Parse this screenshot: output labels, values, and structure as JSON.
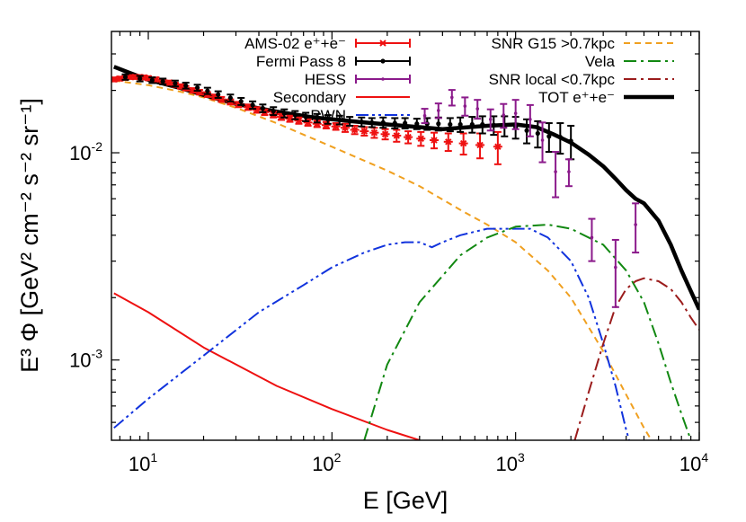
{
  "chart_data": {
    "type": "line",
    "xlabel": "E [GeV]",
    "ylabel": "E³ Φ [GeV² cm⁻² s⁻² sr⁻¹]",
    "xscale": "log",
    "yscale": "log",
    "xlim": [
      6.3,
      10000
    ],
    "ylim": [
      0.00041,
      0.0385
    ],
    "grid": false,
    "legend_position": "top, two columns",
    "x_ticks": [
      {
        "value": 10,
        "base": "10",
        "exp": "1"
      },
      {
        "value": 100,
        "base": "10",
        "exp": "2"
      },
      {
        "value": 1000,
        "base": "10",
        "exp": "3"
      },
      {
        "value": 10000,
        "base": "10",
        "exp": "4"
      }
    ],
    "y_ticks": [
      {
        "value": 0.001,
        "base": "10",
        "exp": "-3"
      },
      {
        "value": 0.01,
        "base": "10",
        "exp": "-2"
      }
    ],
    "legend_left": [
      {
        "key": "ams",
        "label": "AMS-02 e⁺+e⁻"
      },
      {
        "key": "fermi",
        "label": "Fermi Pass 8"
      },
      {
        "key": "hess",
        "label": "HESS"
      },
      {
        "key": "secondary",
        "label": "Secondary"
      },
      {
        "key": "pwn",
        "label": "PWN"
      }
    ],
    "legend_right": [
      {
        "key": "g15",
        "label": "SNR G15 >0.7kpc"
      },
      {
        "key": "vela",
        "label": "Vela"
      },
      {
        "key": "local",
        "label": "SNR local <0.7kpc"
      },
      {
        "key": "tot",
        "label": "TOT e⁺+e⁻"
      }
    ],
    "colors": {
      "ams": "#ee1111",
      "fermi": "#000000",
      "hess": "#8b1a8b",
      "secondary": "#ee1111",
      "pwn": "#1133dd",
      "g15": "#f0a020",
      "vela": "#118811",
      "local": "#9b1c1c",
      "tot": "#000000"
    },
    "series": [
      {
        "key": "tot",
        "x": [
          6.5,
          8,
          10,
          15,
          20,
          30,
          50,
          80,
          100,
          150,
          200,
          300,
          400,
          500,
          700,
          1000,
          1300,
          1600,
          2000,
          2500,
          3000,
          3500,
          4000,
          4500,
          5000,
          6000,
          7000,
          8000,
          10000
        ],
        "y": [
          0.026,
          0.0242,
          0.0225,
          0.0205,
          0.019,
          0.0172,
          0.0158,
          0.0148,
          0.0145,
          0.014,
          0.0137,
          0.0133,
          0.013,
          0.0132,
          0.0135,
          0.0137,
          0.0133,
          0.0123,
          0.0112,
          0.0098,
          0.0086,
          0.0075,
          0.0066,
          0.006,
          0.0057,
          0.0047,
          0.0036,
          0.0027,
          0.00175
        ]
      },
      {
        "key": "g15",
        "x": [
          6.5,
          10,
          15,
          20,
          30,
          50,
          100,
          200,
          300,
          500,
          700,
          1000,
          1500,
          2000,
          3000,
          4000,
          5000,
          6000
        ],
        "y": [
          0.0223,
          0.0212,
          0.0197,
          0.0185,
          0.0165,
          0.0139,
          0.0107,
          0.0082,
          0.0069,
          0.0053,
          0.0045,
          0.0037,
          0.0027,
          0.002,
          0.0011,
          0.00068,
          0.00047,
          0.00036
        ]
      },
      {
        "key": "secondary",
        "x": [
          6.5,
          10,
          20,
          50,
          100,
          200,
          300
        ],
        "y": [
          0.0021,
          0.0017,
          0.00115,
          0.00075,
          0.00058,
          0.00046,
          0.00041
        ]
      },
      {
        "key": "pwn",
        "x": [
          6.5,
          10,
          20,
          40,
          70,
          100,
          150,
          200,
          250,
          300,
          350,
          400,
          500,
          700,
          1000,
          1200,
          1500,
          2000,
          2500,
          3000,
          3500,
          4000,
          4500
        ],
        "y": [
          0.00047,
          0.00065,
          0.00105,
          0.0017,
          0.0023,
          0.0028,
          0.0033,
          0.0036,
          0.0037,
          0.0037,
          0.0035,
          0.0037,
          0.004,
          0.0043,
          0.0043,
          0.0043,
          0.0039,
          0.003,
          0.002,
          0.0012,
          0.00075,
          0.00046,
          0.00032
        ]
      },
      {
        "key": "vela",
        "x": [
          150,
          200,
          300,
          500,
          700,
          1000,
          1500,
          2000,
          3000,
          4000,
          5000,
          6000,
          7000,
          8000,
          9000
        ],
        "y": [
          0.00041,
          0.00095,
          0.0019,
          0.0032,
          0.0039,
          0.0044,
          0.0045,
          0.0043,
          0.0036,
          0.0027,
          0.0019,
          0.0012,
          0.00078,
          0.00055,
          0.00041
        ]
      },
      {
        "key": "local",
        "x": [
          2100,
          2500,
          3000,
          3500,
          4000,
          4500,
          5000,
          6000,
          7000,
          8000,
          9000,
          10000
        ],
        "y": [
          0.00041,
          0.0007,
          0.0012,
          0.0018,
          0.0022,
          0.0024,
          0.00248,
          0.0024,
          0.0022,
          0.0019,
          0.0016,
          0.0014
        ]
      }
    ],
    "data_points": [
      {
        "key": "ams",
        "x": [
          6.5,
          7.0,
          7.5,
          8.0,
          8.5,
          9.0,
          9.5,
          10,
          11,
          12,
          13,
          14,
          15,
          16,
          17.5,
          19,
          21,
          23,
          25,
          28,
          31,
          35,
          39,
          43,
          48,
          53,
          59,
          66,
          74,
          83,
          93,
          105,
          118,
          133,
          150,
          170,
          195,
          225,
          260,
          305,
          360,
          430,
          520,
          640,
          800
        ],
        "y": [
          0.0226,
          0.0228,
          0.023,
          0.0232,
          0.0232,
          0.0232,
          0.0231,
          0.0229,
          0.0226,
          0.0222,
          0.0218,
          0.0213,
          0.0209,
          0.0205,
          0.02,
          0.0196,
          0.0191,
          0.0186,
          0.0181,
          0.0176,
          0.0171,
          0.0166,
          0.0161,
          0.0157,
          0.0153,
          0.0149,
          0.0146,
          0.0143,
          0.014,
          0.0138,
          0.0136,
          0.0134,
          0.0132,
          0.0129,
          0.0127,
          0.0125,
          0.0123,
          0.0121,
          0.0119,
          0.0117,
          0.0115,
          0.0113,
          0.0111,
          0.0109,
          0.0107
        ],
        "err": [
          0.0005,
          0.0005,
          0.0005,
          0.0005,
          0.0005,
          0.0005,
          0.0005,
          0.0005,
          0.0005,
          0.0005,
          0.0005,
          0.0005,
          0.0005,
          0.0005,
          0.0005,
          0.0005,
          0.0005,
          0.0005,
          0.0005,
          0.0005,
          0.0005,
          0.0005,
          0.0005,
          0.0005,
          0.0005,
          0.0005,
          0.0005,
          0.0005,
          0.0005,
          0.0005,
          0.0005,
          0.0005,
          0.0006,
          0.0006,
          0.0006,
          0.0007,
          0.0007,
          0.0008,
          0.0008,
          0.0009,
          0.001,
          0.0011,
          0.0013,
          0.0015,
          0.0019
        ]
      },
      {
        "key": "fermi",
        "x": [
          7.5,
          9,
          10.5,
          12,
          14,
          16,
          18.5,
          21,
          24,
          28,
          32,
          37,
          42,
          48,
          55,
          63,
          72,
          83,
          95,
          110,
          125,
          145,
          165,
          190,
          220,
          250,
          290,
          330,
          380,
          440,
          500,
          580,
          660,
          760,
          870,
          1000,
          1150,
          1320,
          1520,
          1750,
          2000
        ],
        "y": [
          0.0232,
          0.0228,
          0.0224,
          0.0221,
          0.0216,
          0.0211,
          0.0206,
          0.0199,
          0.0191,
          0.0184,
          0.0177,
          0.017,
          0.0164,
          0.0159,
          0.0155,
          0.0152,
          0.0149,
          0.0147,
          0.0145,
          0.0144,
          0.0142,
          0.0141,
          0.014,
          0.014,
          0.0139,
          0.0139,
          0.0138,
          0.0138,
          0.0138,
          0.0137,
          0.0137,
          0.0137,
          0.0137,
          0.0136,
          0.0135,
          0.0133,
          0.0128,
          0.0124,
          0.012,
          0.0119,
          0.0114
        ],
        "err": [
          0.0007,
          0.0007,
          0.0007,
          0.0007,
          0.0007,
          0.0007,
          0.0007,
          0.0007,
          0.0007,
          0.0007,
          0.0007,
          0.0007,
          0.0007,
          0.0007,
          0.0007,
          0.0007,
          0.0007,
          0.0007,
          0.0007,
          0.0007,
          0.0007,
          0.0007,
          0.0007,
          0.0008,
          0.0008,
          0.0008,
          0.0008,
          0.0009,
          0.001,
          0.001,
          0.0011,
          0.0012,
          0.0013,
          0.0014,
          0.0015,
          0.0016,
          0.0017,
          0.0018,
          0.0019,
          0.002,
          0.0021
        ]
      },
      {
        "key": "hess",
        "x": [
          320,
          380,
          450,
          530,
          620,
          730,
          860,
          1000,
          1200,
          1400,
          1650,
          1950,
          2600,
          3500,
          4500
        ],
        "y": [
          0.0151,
          0.016,
          0.0185,
          0.0168,
          0.0163,
          0.0145,
          0.0152,
          0.0155,
          0.0145,
          0.0115,
          0.0081,
          0.0081,
          0.0039,
          0.0028,
          0.0045
        ],
        "err": [
          0.0012,
          0.0013,
          0.0016,
          0.0017,
          0.0017,
          0.0017,
          0.002,
          0.0025,
          0.0025,
          0.0025,
          0.002,
          0.0012,
          0.0009,
          0.001,
          0.0012
        ]
      }
    ]
  }
}
